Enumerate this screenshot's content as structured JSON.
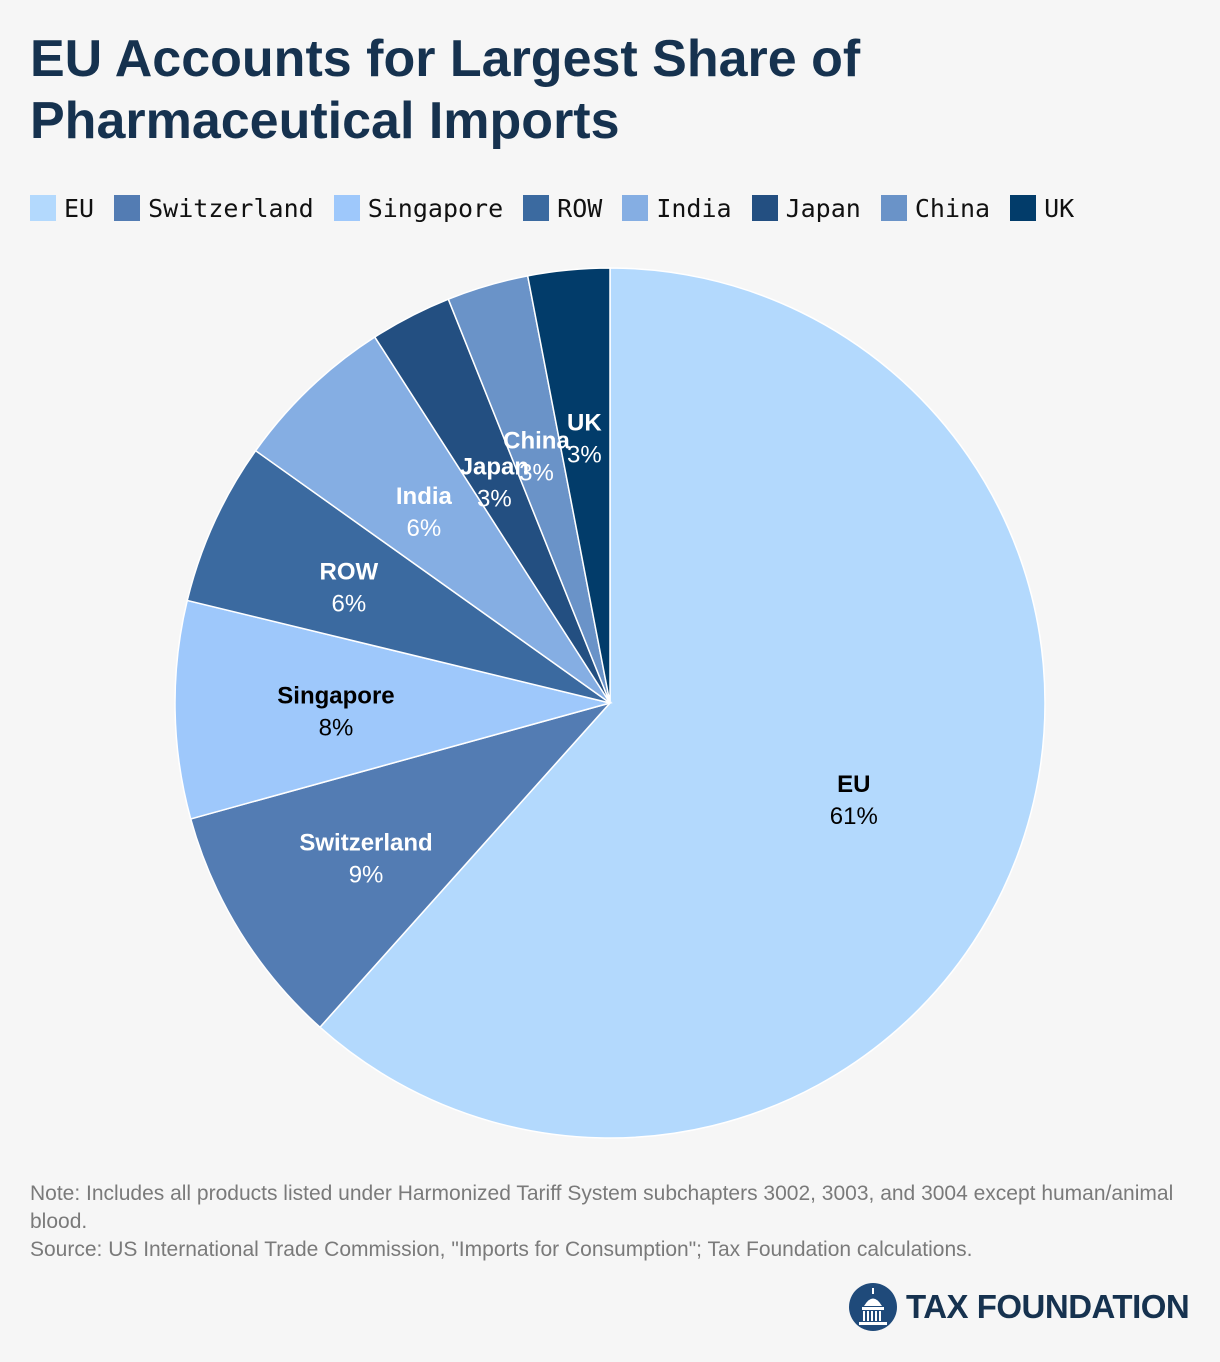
{
  "title": "EU Accounts for Largest Share of Pharmaceutical Imports",
  "chart_data": {
    "type": "pie",
    "title": "EU Accounts for Largest Share of Pharmaceutical Imports",
    "legend_position": "top",
    "start": "12 o'clock",
    "direction": "clockwise",
    "slices": [
      {
        "label": "EU",
        "value": 61,
        "display": "61%",
        "color": "#b3d9fd",
        "text_color": "#000000"
      },
      {
        "label": "Switzerland",
        "value": 9,
        "display": "9%",
        "color": "#537cb3",
        "text_color": "#ffffff"
      },
      {
        "label": "Singapore",
        "value": 8,
        "display": "8%",
        "color": "#9ec8fb",
        "text_color": "#000000"
      },
      {
        "label": "ROW",
        "value": 6,
        "display": "6%",
        "color": "#3b6aa0",
        "text_color": "#ffffff"
      },
      {
        "label": "India",
        "value": 6,
        "display": "6%",
        "color": "#85aee3",
        "text_color": "#ffffff"
      },
      {
        "label": "Japan",
        "value": 3,
        "display": "3%",
        "color": "#234f81",
        "text_color": "#ffffff"
      },
      {
        "label": "China",
        "value": 3,
        "display": "3%",
        "color": "#6a93c8",
        "text_color": "#ffffff"
      },
      {
        "label": "UK",
        "value": 3,
        "display": "3%",
        "color": "#023c6a",
        "text_color": "#ffffff"
      }
    ],
    "legend_order": [
      "EU",
      "Switzerland",
      "Singapore",
      "ROW",
      "India",
      "Japan",
      "China",
      "UK"
    ]
  },
  "footnote": {
    "note": "Note: Includes all products listed under Harmonized Tariff System subchapters 3002, 3003, and 3004 except human/animal blood.",
    "source": "Source: US International Trade Commission, \"Imports for Consumption\"; Tax Foundation calculations."
  },
  "logo": {
    "text": "TAX FOUNDATION",
    "icon": "capitol-dome-icon"
  }
}
